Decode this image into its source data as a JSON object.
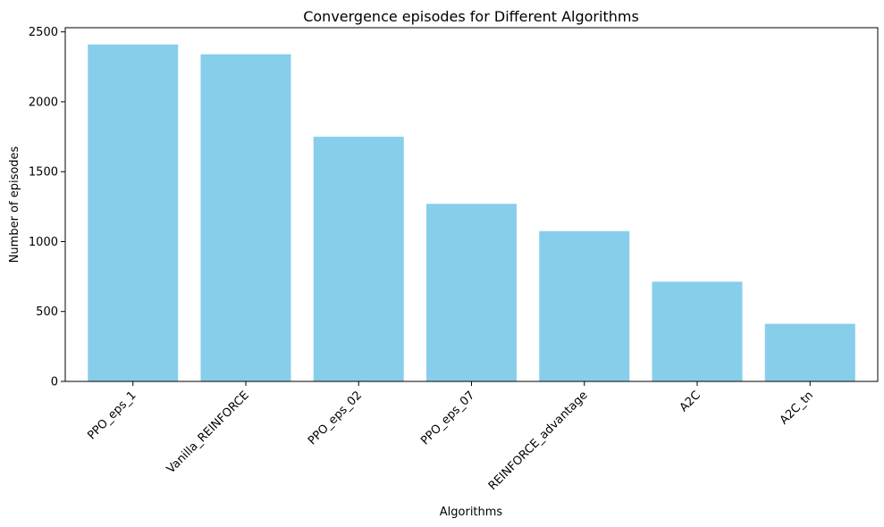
{
  "chart_data": {
    "type": "bar",
    "title": "Convergence episodes for Different Algorithms",
    "xlabel": "Algorithms",
    "ylabel": "Number of episodes",
    "categories": [
      "PPO_eps_1",
      "Vanilla_REINFORCE",
      "PPO_eps_02",
      "PPO_eps_07",
      "REINFORCE_advantage",
      "A2C",
      "A2C_tn"
    ],
    "values": [
      2410,
      2340,
      1750,
      1270,
      1075,
      713,
      412
    ],
    "yticks": [
      0,
      500,
      1000,
      1500,
      2000,
      2500
    ],
    "ylim": [
      0,
      2530
    ],
    "bar_color": "#87CEEB",
    "grid": false,
    "legend": "none"
  }
}
